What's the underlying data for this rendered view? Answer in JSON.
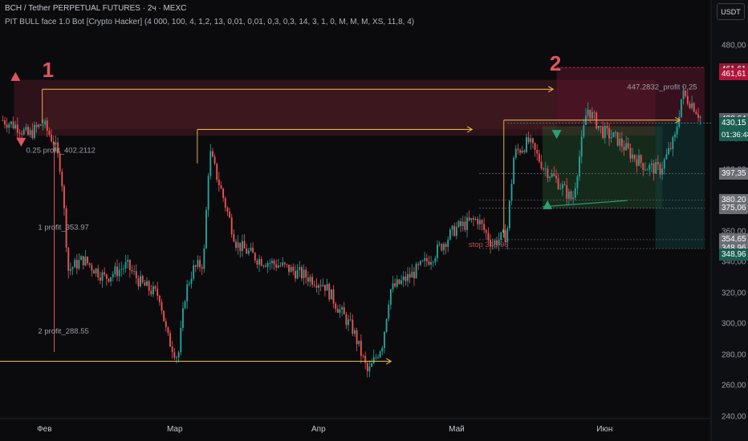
{
  "header": {
    "symbol_line": "BCH / Tether PERPETUAL FUTURES · 2ч · MEXC",
    "indicator_line": "PIT BULL face 1.0 Bot [Crypto Hacker] (4 000, 100, 4, 1,2, 13, 0,01, 0,01, 0,3, 0,3, 14, 3, 1, 0, M, M, M, XS, 11,8, 4)"
  },
  "currency_button": "USDT",
  "countdown": "01:36:48",
  "colors": {
    "background": "#0b0b0e",
    "up_candle": "#26a69a",
    "down_candle": "#ef5350",
    "level_line": "#e0b04a",
    "zone_red": "#8a2a35",
    "zone_green": "#2f6e3c",
    "marker_red": "#e05560",
    "marker_green": "#2e9e72"
  },
  "chart_data": {
    "type": "candlestick",
    "y_axis": {
      "range": [
        240,
        490
      ],
      "ticks": [
        "480,00",
        "460,00",
        "420,00",
        "400,00",
        "360,00",
        "340,00",
        "320,00",
        "300,00",
        "280,00",
        "260,00",
        "240,00"
      ]
    },
    "x_axis": {
      "ticks": [
        "Фев",
        "Мар",
        "Апр",
        "Май",
        "Июн"
      ]
    },
    "price_waypoints": [
      [
        0,
        432
      ],
      [
        0.02,
        428
      ],
      [
        0.035,
        422
      ],
      [
        0.055,
        430
      ],
      [
        0.07,
        418
      ],
      [
        0.08,
        400
      ],
      [
        0.09,
        335
      ],
      [
        0.11,
        342
      ],
      [
        0.14,
        330
      ],
      [
        0.17,
        338
      ],
      [
        0.19,
        326
      ],
      [
        0.215,
        318
      ],
      [
        0.225,
        292
      ],
      [
        0.24,
        278
      ],
      [
        0.25,
        320
      ],
      [
        0.26,
        335
      ],
      [
        0.275,
        340
      ],
      [
        0.283,
        412
      ],
      [
        0.3,
        385
      ],
      [
        0.32,
        352
      ],
      [
        0.35,
        342
      ],
      [
        0.38,
        338
      ],
      [
        0.41,
        332
      ],
      [
        0.44,
        326
      ],
      [
        0.46,
        310
      ],
      [
        0.48,
        296
      ],
      [
        0.5,
        268
      ],
      [
        0.52,
        288
      ],
      [
        0.53,
        322
      ],
      [
        0.56,
        332
      ],
      [
        0.59,
        345
      ],
      [
        0.62,
        362
      ],
      [
        0.65,
        368
      ],
      [
        0.67,
        352
      ],
      [
        0.69,
        358
      ],
      [
        0.7,
        410
      ],
      [
        0.72,
        418
      ],
      [
        0.74,
        402
      ],
      [
        0.76,
        392
      ],
      [
        0.78,
        380
      ],
      [
        0.8,
        440
      ],
      [
        0.82,
        425
      ],
      [
        0.84,
        420
      ],
      [
        0.86,
        410
      ],
      [
        0.88,
        402
      ],
      [
        0.9,
        400
      ],
      [
        0.92,
        420
      ],
      [
        0.93,
        449
      ],
      [
        0.945,
        442
      ],
      [
        0.96,
        430
      ],
      [
        1,
        431
      ]
    ],
    "levels": [
      {
        "label": "",
        "price": 452,
        "kind": "level-line"
      },
      {
        "label": "",
        "price": 432,
        "kind": "level-line"
      },
      {
        "label": "",
        "price": 426,
        "kind": "level-line"
      },
      {
        "label": "",
        "price": 276,
        "kind": "level-line"
      }
    ],
    "annotations": [
      {
        "text": "1",
        "kind": "wave-number"
      },
      {
        "text": "2",
        "kind": "wave-number"
      },
      {
        "text": "0.25 profit_402.2112",
        "kind": "target-label"
      },
      {
        "text": "1 profit_353.97",
        "kind": "target-label"
      },
      {
        "text": "2 profit_288.55",
        "kind": "target-label"
      },
      {
        "text": "447.2832_profit 0.25",
        "kind": "target-label"
      },
      {
        "text": "stop 348.96",
        "kind": "stop-label"
      }
    ],
    "price_tags": [
      {
        "text": "461,61",
        "price": 465,
        "color": "#8a1b34"
      },
      {
        "text": "461,61",
        "price": 461.6,
        "color": "#b0143a"
      },
      {
        "text": "432,64",
        "price": 432.6,
        "color": "#5c5f66"
      },
      {
        "text": "430,15",
        "price": 430.2,
        "color": "#1b5e52"
      },
      {
        "text": "397,35",
        "price": 397.4,
        "color": "#6b6e75"
      },
      {
        "text": "380,20",
        "price": 380.2,
        "color": "#6b6e75"
      },
      {
        "text": "375,06",
        "price": 375.1,
        "color": "#6b6e75"
      },
      {
        "text": "354,65",
        "price": 354.7,
        "color": "#6b6e75"
      },
      {
        "text": "348,96",
        "price": 348.96,
        "color": "#6b6e75"
      },
      {
        "text": "348,96",
        "price": 345,
        "color": "#1b5e52"
      }
    ]
  }
}
